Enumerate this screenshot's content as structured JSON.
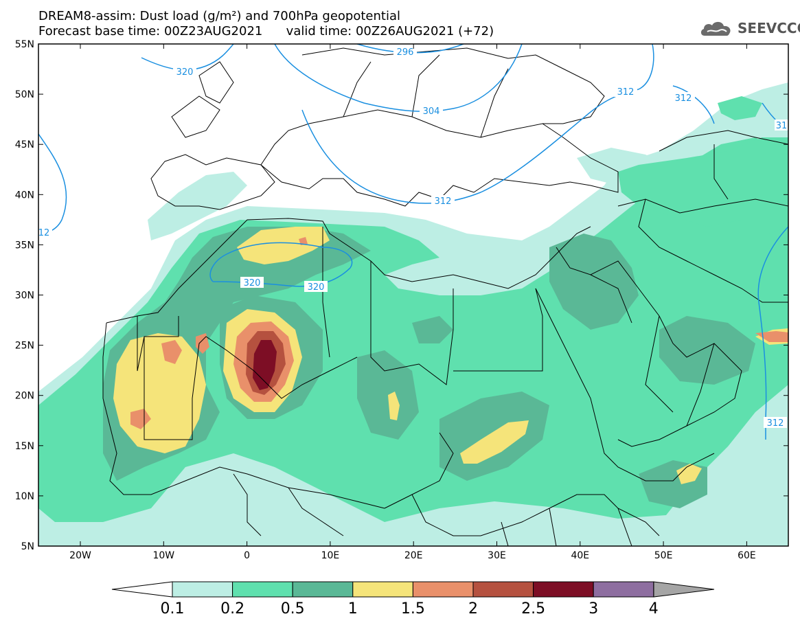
{
  "title": {
    "line1": "DREAM8-assim: Dust load (g/m²) and 700hPa geopotential",
    "line2": "Forecast base time: 00Z23AUG2021      valid time: 00Z26AUG2021 (+72)"
  },
  "logo": {
    "text": "SEEVCCC",
    "icon": "cloud-icon"
  },
  "axes": {
    "lat_labels": [
      "55N",
      "50N",
      "45N",
      "40N",
      "35N",
      "30N",
      "25N",
      "20N",
      "15N",
      "10N",
      "5N"
    ],
    "lon_labels": [
      "20W",
      "10W",
      "0",
      "10E",
      "20E",
      "30E",
      "40E",
      "50E",
      "60E"
    ]
  },
  "contours": {
    "labels": [
      "320",
      "296",
      "304",
      "312",
      "312",
      "31",
      "12",
      "320",
      "320",
      "312",
      "312"
    ]
  },
  "colorbar": {
    "labels": [
      "0.1",
      "0.2",
      "0.5",
      "1",
      "1.5",
      "2",
      "2.5",
      "3",
      "4"
    ],
    "colors": [
      "#bdeee4",
      "#5fe0ae",
      "#5ab896",
      "#f5e47a",
      "#e9906a",
      "#b5513f",
      "#7d0e25",
      "#8e6ea0",
      "#a5a5a5"
    ]
  },
  "palette": {
    "l1": "#bdeee4",
    "l2": "#5fe0ae",
    "l3": "#5ab896",
    "l4": "#f5e47a",
    "l5": "#e9906a",
    "l6": "#b5513f",
    "l7": "#7d0e25",
    "contour": "#1a8fe0"
  }
}
